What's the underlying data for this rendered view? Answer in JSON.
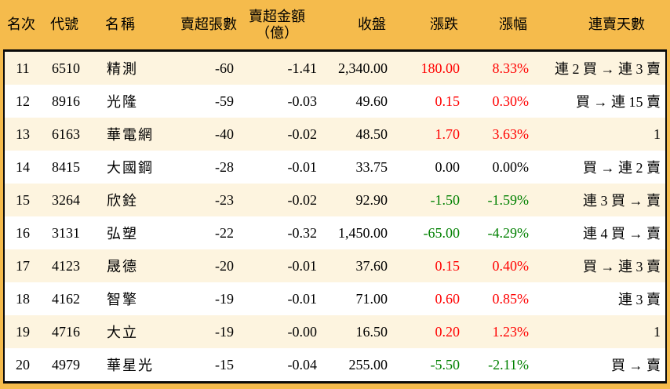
{
  "colors": {
    "header_bg": "#F5BB4C",
    "row_alt_bg": "#FDF4DF",
    "row_bg": "#FFFFFF",
    "up": "#FF0000",
    "down": "#008000",
    "text": "#000000",
    "border": "#0A0A0A"
  },
  "table": {
    "columns": [
      {
        "key": "rank",
        "label": "名次"
      },
      {
        "key": "code",
        "label": "代號"
      },
      {
        "key": "name",
        "label": "名稱"
      },
      {
        "key": "volume",
        "label": "賣超張數"
      },
      {
        "key": "amount",
        "label": "賣超金額",
        "label2": "（億）"
      },
      {
        "key": "close",
        "label": "收盤"
      },
      {
        "key": "change",
        "label": "漲跌"
      },
      {
        "key": "pct",
        "label": "漲幅"
      },
      {
        "key": "days",
        "label": "連賣天數"
      }
    ],
    "rows": [
      {
        "rank": "11",
        "code": "6510",
        "name": "精測",
        "volume": "-60",
        "amount": "-1.41",
        "close": "2,340.00",
        "change": "180.00",
        "pct": "8.33%",
        "days": "連 2 買 → 連 3 賣"
      },
      {
        "rank": "12",
        "code": "8916",
        "name": "光隆",
        "volume": "-59",
        "amount": "-0.03",
        "close": "49.60",
        "change": "0.15",
        "pct": "0.30%",
        "days": "買 → 連 15 賣"
      },
      {
        "rank": "13",
        "code": "6163",
        "name": "華電網",
        "volume": "-40",
        "amount": "-0.02",
        "close": "48.50",
        "change": "1.70",
        "pct": "3.63%",
        "days": "1"
      },
      {
        "rank": "14",
        "code": "8415",
        "name": "大國鋼",
        "volume": "-28",
        "amount": "-0.01",
        "close": "33.75",
        "change": "0.00",
        "pct": "0.00%",
        "days": "買 → 連 2 賣"
      },
      {
        "rank": "15",
        "code": "3264",
        "name": "欣銓",
        "volume": "-23",
        "amount": "-0.02",
        "close": "92.90",
        "change": "-1.50",
        "pct": "-1.59%",
        "days": "連 3 買 → 賣"
      },
      {
        "rank": "16",
        "code": "3131",
        "name": "弘塑",
        "volume": "-22",
        "amount": "-0.32",
        "close": "1,450.00",
        "change": "-65.00",
        "pct": "-4.29%",
        "days": "連 4 買 → 賣"
      },
      {
        "rank": "17",
        "code": "4123",
        "name": "晟德",
        "volume": "-20",
        "amount": "-0.01",
        "close": "37.60",
        "change": "0.15",
        "pct": "0.40%",
        "days": "買 → 連 3 賣"
      },
      {
        "rank": "18",
        "code": "4162",
        "name": "智擎",
        "volume": "-19",
        "amount": "-0.01",
        "close": "71.00",
        "change": "0.60",
        "pct": "0.85%",
        "days": "連 3 賣"
      },
      {
        "rank": "19",
        "code": "4716",
        "name": "大立",
        "volume": "-19",
        "amount": "-0.00",
        "close": "16.50",
        "change": "0.20",
        "pct": "1.23%",
        "days": "1"
      },
      {
        "rank": "20",
        "code": "4979",
        "name": "華星光",
        "volume": "-15",
        "amount": "-0.04",
        "close": "255.00",
        "change": "-5.50",
        "pct": "-2.11%",
        "days": "買 → 賣"
      }
    ]
  }
}
